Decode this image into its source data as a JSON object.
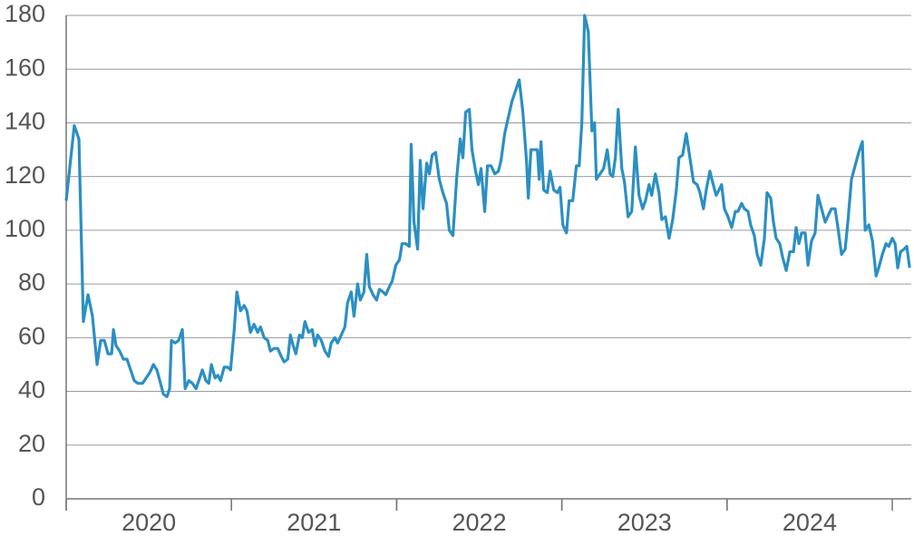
{
  "chart_data": {
    "type": "line",
    "x": [
      2020.0,
      2020.049,
      2020.077,
      2020.104,
      2020.132,
      2020.159,
      2020.187,
      2020.209,
      2020.231,
      2020.253,
      2020.275,
      2020.286,
      2020.302,
      2020.324,
      2020.346,
      2020.368,
      2020.39,
      2020.412,
      2020.434,
      2020.462,
      2020.484,
      2020.506,
      2020.528,
      2020.549,
      2020.571,
      2020.588,
      2020.61,
      2020.626,
      2020.637,
      2020.659,
      2020.681,
      2020.703,
      2020.72,
      2020.742,
      2020.764,
      2020.786,
      2020.808,
      2020.824,
      2020.846,
      2020.863,
      2020.879,
      2020.901,
      2020.918,
      2020.934,
      2020.956,
      2020.978,
      2020.995,
      2021.017,
      2021.033,
      2021.055,
      2021.077,
      2021.094,
      2021.115,
      2021.137,
      2021.159,
      2021.176,
      2021.198,
      2021.22,
      2021.236,
      2021.258,
      2021.28,
      2021.302,
      2021.319,
      2021.341,
      2021.357,
      2021.374,
      2021.39,
      2021.412,
      2021.429,
      2021.445,
      2021.467,
      2021.489,
      2021.506,
      2021.522,
      2021.544,
      2021.566,
      2021.588,
      2021.604,
      2021.626,
      2021.643,
      2021.665,
      2021.687,
      2021.703,
      2021.725,
      2021.742,
      2021.764,
      2021.78,
      2021.802,
      2021.819,
      2021.835,
      2021.857,
      2021.879,
      2021.896,
      2021.918,
      2021.934,
      2021.956,
      2021.973,
      2021.995,
      2022.017,
      2022.033,
      2022.055,
      2022.077,
      2022.088,
      2022.105,
      2022.127,
      2022.143,
      2022.16,
      2022.182,
      2022.198,
      2022.215,
      2022.236,
      2022.258,
      2022.28,
      2022.302,
      2022.319,
      2022.341,
      2022.363,
      2022.385,
      2022.401,
      2022.418,
      2022.44,
      2022.456,
      2022.478,
      2022.495,
      2022.511,
      2022.533,
      2022.55,
      2022.572,
      2022.594,
      2022.616,
      2022.632,
      2022.654,
      2022.676,
      2022.698,
      2022.72,
      2022.742,
      2022.764,
      2022.786,
      2022.797,
      2022.813,
      2022.835,
      2022.852,
      2022.863,
      2022.874,
      2022.89,
      2022.912,
      2022.929,
      2022.951,
      2022.973,
      2022.989,
      2023.006,
      2023.028,
      2023.044,
      2023.066,
      2023.088,
      2023.105,
      2023.121,
      2023.138,
      2023.16,
      2023.182,
      2023.198,
      2023.209,
      2023.231,
      2023.253,
      2023.275,
      2023.292,
      2023.308,
      2023.324,
      2023.341,
      2023.363,
      2023.379,
      2023.401,
      2023.423,
      2023.445,
      2023.467,
      2023.489,
      2023.506,
      2023.528,
      2023.544,
      2023.566,
      2023.588,
      2023.605,
      2023.627,
      2023.649,
      2023.671,
      2023.693,
      2023.709,
      2023.731,
      2023.753,
      2023.775,
      2023.797,
      2023.819,
      2023.836,
      2023.857,
      2023.874,
      2023.896,
      2023.912,
      2023.934,
      2023.951,
      2023.967,
      2023.984,
      2024.006,
      2024.028,
      2024.05,
      2024.066,
      2024.088,
      2024.105,
      2024.127,
      2024.143,
      2024.165,
      2024.182,
      2024.204,
      2024.226,
      2024.242,
      2024.264,
      2024.281,
      2024.297,
      2024.319,
      2024.336,
      2024.358,
      2024.38,
      2024.402,
      2024.418,
      2024.435,
      2024.451,
      2024.473,
      2024.49,
      2024.511,
      2024.533,
      2024.55,
      2024.572,
      2024.594,
      2024.616,
      2024.632,
      2024.654,
      2024.671,
      2024.693,
      2024.715,
      2024.731,
      2024.753,
      2024.775,
      2024.797,
      2024.819,
      2024.836,
      2024.858,
      2024.88,
      2024.902,
      2024.918,
      2024.94,
      2024.962,
      2024.979,
      2025.0,
      2025.017,
      2025.033,
      2025.05,
      2025.072,
      2025.088,
      2025.105
    ],
    "series": [
      {
        "color": "#2b8fc3",
        "values": [
          111,
          139,
          134,
          66,
          76,
          68,
          50,
          59,
          59,
          54,
          54,
          63,
          57,
          55,
          52,
          52,
          48,
          44,
          43,
          43,
          45,
          47,
          50,
          48,
          43,
          39,
          38,
          41,
          59,
          58,
          59,
          63,
          41,
          44,
          43,
          41,
          45,
          48,
          44,
          43,
          50,
          45,
          46,
          44,
          49,
          49,
          48,
          63,
          77,
          70,
          72,
          70,
          62,
          65,
          62,
          64,
          60,
          59,
          55,
          56,
          56,
          53,
          51,
          52,
          61,
          57,
          54,
          61,
          60,
          66,
          62,
          63,
          57,
          61,
          59,
          55,
          53,
          58,
          60,
          58,
          61,
          64,
          73,
          77,
          68,
          80,
          74,
          77,
          91,
          79,
          76,
          74,
          78,
          77,
          76,
          79,
          81,
          87,
          89,
          95,
          95,
          94,
          132,
          103,
          93,
          126,
          108,
          125,
          121,
          128,
          129,
          119,
          114,
          110,
          100,
          98,
          119,
          134,
          127,
          144,
          145,
          130,
          122,
          117,
          123,
          107,
          124,
          124,
          121,
          122,
          126,
          136,
          142,
          148,
          152,
          156,
          144,
          126,
          112,
          130,
          130,
          130,
          119,
          133,
          115,
          114,
          122,
          115,
          114,
          116,
          102,
          99,
          111,
          111,
          124,
          124,
          140,
          180,
          174,
          137,
          140,
          119,
          121,
          123,
          130,
          121,
          120,
          127,
          145,
          123,
          118,
          105,
          107,
          131,
          113,
          108,
          111,
          117,
          113,
          121,
          114,
          104,
          105,
          97,
          104,
          115,
          127,
          128,
          136,
          127,
          118,
          117,
          114,
          108,
          115,
          122,
          118,
          113,
          115,
          117,
          108,
          105,
          101,
          107,
          107,
          110,
          108,
          107,
          102,
          98,
          91,
          87,
          97,
          114,
          112,
          103,
          97,
          95,
          90,
          85,
          92,
          92,
          101,
          95,
          99,
          99,
          87,
          96,
          99,
          113,
          108,
          103,
          106,
          108,
          108,
          101,
          91,
          93,
          103,
          119,
          124,
          129,
          133,
          100,
          102,
          96,
          83,
          86,
          91,
          95,
          94,
          97,
          95,
          86,
          92,
          93,
          94,
          86
        ]
      }
    ],
    "xlim": [
      2020,
      2025.115
    ],
    "xticks": [
      {
        "value": 2020.5,
        "label": "2020"
      },
      {
        "value": 2021.5,
        "label": "2021"
      },
      {
        "value": 2022.5,
        "label": "2022"
      },
      {
        "value": 2023.5,
        "label": "2023"
      },
      {
        "value": 2024.5,
        "label": "2024"
      }
    ],
    "ylim": [
      0,
      180
    ],
    "yticks": [
      0,
      20,
      40,
      60,
      80,
      100,
      120,
      140,
      160,
      180
    ],
    "grid": true
  }
}
